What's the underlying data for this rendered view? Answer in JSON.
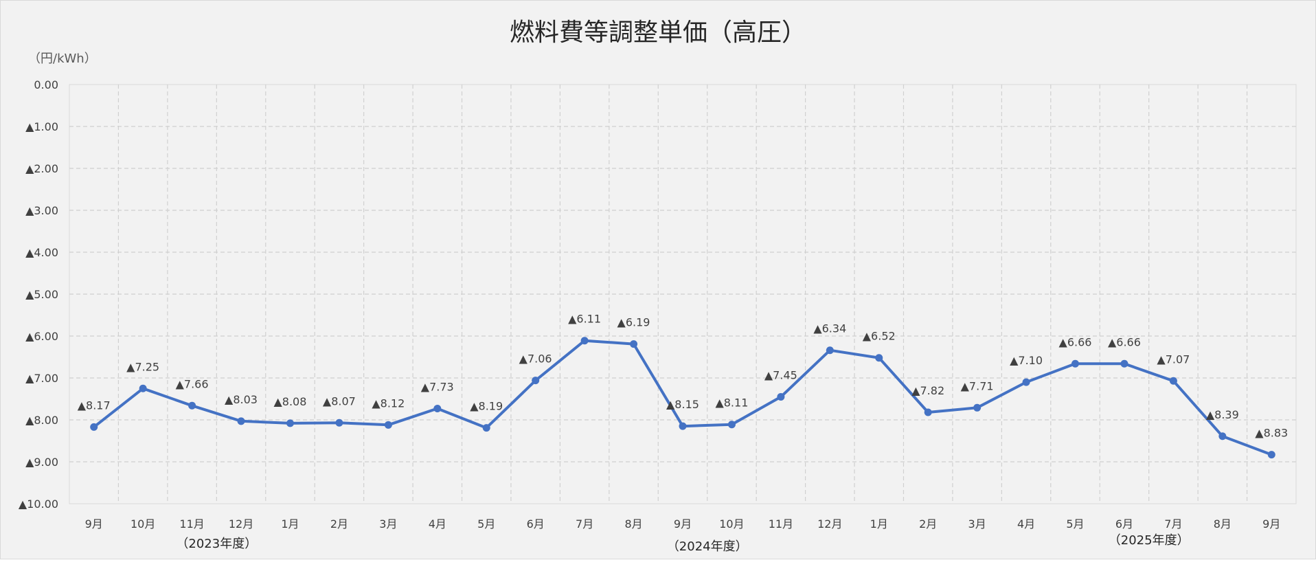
{
  "chart_data": {
    "type": "line",
    "title": "燃料費等調整単価（高圧）",
    "unit_label": "（円/kWh）",
    "categories": [
      "9月",
      "10月",
      "11月",
      "12月",
      "1月",
      "2月",
      "3月",
      "4月",
      "5月",
      "6月",
      "7月",
      "8月",
      "9月",
      "10月",
      "11月",
      "12月",
      "1月",
      "2月",
      "3月",
      "4月",
      "5月",
      "6月",
      "7月",
      "8月",
      "9月"
    ],
    "series": [
      {
        "values": [
          -8.17,
          -7.25,
          -7.66,
          -8.03,
          -8.08,
          -8.07,
          -8.12,
          -7.73,
          -8.19,
          -7.06,
          -6.11,
          -6.19,
          -8.15,
          -8.11,
          -7.45,
          -6.34,
          -6.52,
          -7.82,
          -7.71,
          -7.1,
          -6.66,
          -6.66,
          -7.07,
          -8.39,
          -8.83
        ],
        "labels": [
          "▲8.17",
          "▲7.25",
          "▲7.66",
          "▲8.03",
          "▲8.08",
          "▲8.07",
          "▲8.12",
          "▲7.73",
          "▲8.19",
          "▲7.06",
          "▲6.11",
          "▲6.19",
          "▲8.15",
          "▲8.11",
          "▲7.45",
          "▲6.34",
          "▲6.52",
          "▲7.82",
          "▲7.71",
          "▲7.10",
          "▲6.66",
          "▲6.66",
          "▲7.07",
          "▲8.39",
          "▲8.83"
        ],
        "color": "#4472c4"
      }
    ],
    "ylim": [
      -10,
      0
    ],
    "y_ticks": [
      0,
      -1,
      -2,
      -3,
      -4,
      -5,
      -6,
      -7,
      -8,
      -9,
      -10
    ],
    "y_tick_labels": [
      "0.00",
      "▲1.00",
      "▲2.00",
      "▲3.00",
      "▲4.00",
      "▲5.00",
      "▲6.00",
      "▲7.00",
      "▲8.00",
      "▲9.00",
      "▲10.00"
    ],
    "grid": true,
    "fiscal_year_labels": [
      {
        "text": "（2023年度）",
        "category_index": 2.5
      },
      {
        "text": "（2024年度）",
        "category_index": 12.5
      },
      {
        "text": "（2025年度）",
        "category_index": 21.5
      }
    ]
  }
}
